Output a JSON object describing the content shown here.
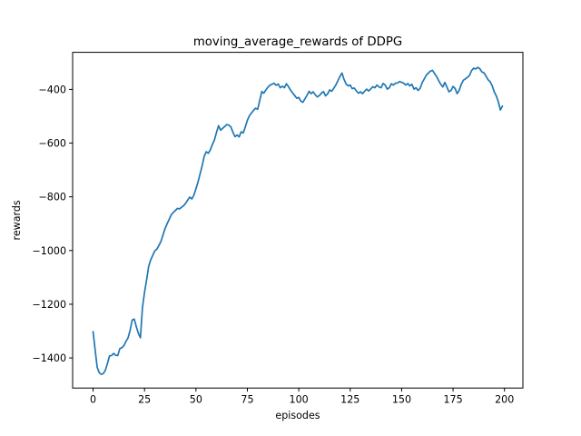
{
  "figure": {
    "background": "#ffffff",
    "title": "moving_average_rewards of DDPG",
    "xlabel": "episodes",
    "ylabel": "rewards"
  },
  "chart_data": {
    "type": "line",
    "title": "moving_average_rewards of DDPG",
    "xlabel": "episodes",
    "ylabel": "rewards",
    "grid": false,
    "legend": null,
    "xticks": [
      0,
      25,
      50,
      75,
      100,
      125,
      150,
      175,
      200
    ],
    "yticks": [
      -400,
      -600,
      -800,
      -1000,
      -1200,
      -1400
    ],
    "xlim": [
      -9.95,
      208.95
    ],
    "ylim": [
      -1512,
      -262
    ],
    "x_start": 0,
    "x_step": 1,
    "series": [
      {
        "name": "moving_average_rewards",
        "color": "#1f77b4",
        "values": [
          -1302,
          -1370,
          -1435,
          -1455,
          -1461,
          -1458,
          -1445,
          -1420,
          -1392,
          -1391,
          -1383,
          -1390,
          -1391,
          -1365,
          -1362,
          -1354,
          -1338,
          -1325,
          -1297,
          -1259,
          -1255,
          -1283,
          -1308,
          -1325,
          -1212,
          -1156,
          -1110,
          -1060,
          -1035,
          -1018,
          -1001,
          -995,
          -981,
          -966,
          -942,
          -918,
          -900,
          -884,
          -867,
          -858,
          -851,
          -843,
          -845,
          -839,
          -833,
          -824,
          -812,
          -801,
          -808,
          -794,
          -770,
          -745,
          -715,
          -685,
          -650,
          -632,
          -638,
          -625,
          -605,
          -588,
          -560,
          -535,
          -552,
          -545,
          -538,
          -531,
          -533,
          -540,
          -560,
          -576,
          -570,
          -577,
          -558,
          -562,
          -540,
          -515,
          -498,
          -488,
          -478,
          -470,
          -474,
          -442,
          -408,
          -414,
          -402,
          -392,
          -384,
          -381,
          -377,
          -385,
          -380,
          -394,
          -388,
          -394,
          -379,
          -390,
          -403,
          -413,
          -423,
          -433,
          -430,
          -444,
          -448,
          -435,
          -422,
          -407,
          -416,
          -409,
          -420,
          -428,
          -423,
          -414,
          -408,
          -424,
          -417,
          -402,
          -407,
          -396,
          -384,
          -368,
          -352,
          -339,
          -363,
          -380,
          -387,
          -384,
          -397,
          -395,
          -406,
          -414,
          -409,
          -416,
          -407,
          -399,
          -406,
          -398,
          -390,
          -394,
          -384,
          -391,
          -394,
          -378,
          -384,
          -399,
          -394,
          -379,
          -384,
          -377,
          -376,
          -371,
          -374,
          -377,
          -384,
          -378,
          -387,
          -381,
          -399,
          -394,
          -404,
          -396,
          -375,
          -361,
          -347,
          -339,
          -332,
          -329,
          -341,
          -352,
          -367,
          -381,
          -391,
          -374,
          -391,
          -409,
          -404,
          -389,
          -397,
          -416,
          -403,
          -381,
          -366,
          -361,
          -355,
          -348,
          -330,
          -321,
          -324,
          -318,
          -323,
          -335,
          -338,
          -350,
          -364,
          -371,
          -386,
          -409,
          -424,
          -446,
          -477,
          -462
        ]
      }
    ]
  }
}
